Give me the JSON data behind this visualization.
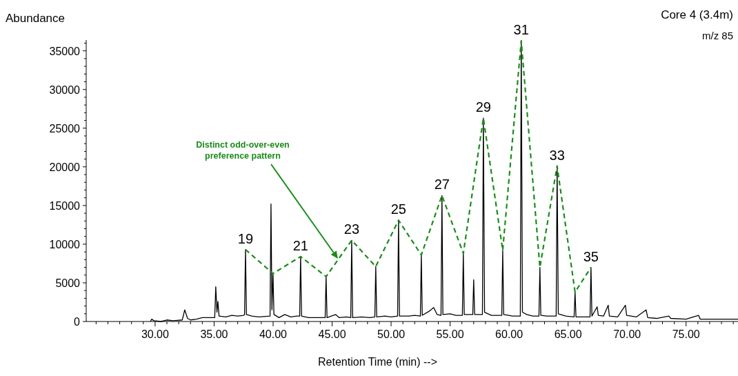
{
  "chart_data": {
    "type": "line",
    "title": "Core 4 (3.4m)",
    "subtitle": "m/z 85",
    "xlabel": "Retention Time (min) -->",
    "ylabel": "Abundance",
    "xlim": [
      24.16,
      79.4
    ],
    "ylim": [
      0,
      36400
    ],
    "xticks": [
      {
        "value": 25,
        "label": null
      },
      {
        "value": 26,
        "label": null
      },
      {
        "value": 27,
        "label": null
      },
      {
        "value": 28,
        "label": null
      },
      {
        "value": 29,
        "label": null
      },
      {
        "value": 30,
        "label": "30.00"
      },
      {
        "value": 31,
        "label": null
      },
      {
        "value": 32,
        "label": null
      },
      {
        "value": 33,
        "label": null
      },
      {
        "value": 34,
        "label": null
      },
      {
        "value": 35,
        "label": "35.00"
      },
      {
        "value": 36,
        "label": null
      },
      {
        "value": 37,
        "label": null
      },
      {
        "value": 38,
        "label": null
      },
      {
        "value": 39,
        "label": null
      },
      {
        "value": 40,
        "label": "40.00"
      },
      {
        "value": 41,
        "label": null
      },
      {
        "value": 42,
        "label": null
      },
      {
        "value": 43,
        "label": null
      },
      {
        "value": 44,
        "label": null
      },
      {
        "value": 45,
        "label": "45.00"
      },
      {
        "value": 46,
        "label": null
      },
      {
        "value": 47,
        "label": null
      },
      {
        "value": 48,
        "label": null
      },
      {
        "value": 49,
        "label": null
      },
      {
        "value": 50,
        "label": "50.00"
      },
      {
        "value": 51,
        "label": null
      },
      {
        "value": 52,
        "label": null
      },
      {
        "value": 53,
        "label": null
      },
      {
        "value": 54,
        "label": null
      },
      {
        "value": 55,
        "label": "55.00"
      },
      {
        "value": 56,
        "label": null
      },
      {
        "value": 57,
        "label": null
      },
      {
        "value": 58,
        "label": null
      },
      {
        "value": 59,
        "label": null
      },
      {
        "value": 60,
        "label": "60.00"
      },
      {
        "value": 61,
        "label": null
      },
      {
        "value": 62,
        "label": null
      },
      {
        "value": 63,
        "label": null
      },
      {
        "value": 64,
        "label": null
      },
      {
        "value": 65,
        "label": "65.00"
      },
      {
        "value": 66,
        "label": null
      },
      {
        "value": 67,
        "label": null
      },
      {
        "value": 68,
        "label": null
      },
      {
        "value": 69,
        "label": null
      },
      {
        "value": 70,
        "label": "70.00"
      },
      {
        "value": 71,
        "label": null
      },
      {
        "value": 72,
        "label": null
      },
      {
        "value": 73,
        "label": null
      },
      {
        "value": 74,
        "label": null
      },
      {
        "value": 75,
        "label": "75.00"
      },
      {
        "value": 76,
        "label": null
      },
      {
        "value": 77,
        "label": null
      },
      {
        "value": 78,
        "label": null
      },
      {
        "value": 79,
        "label": null
      }
    ],
    "yticks": [
      0,
      {
        "value": 1000,
        "label": null
      },
      {
        "value": 2000,
        "label": null
      },
      {
        "value": 3000,
        "label": null
      },
      {
        "value": 4000,
        "label": null
      },
      5000,
      {
        "value": 6000,
        "label": null
      },
      {
        "value": 7000,
        "label": null
      },
      {
        "value": 8000,
        "label": null
      },
      {
        "value": 9000,
        "label": null
      },
      10000,
      {
        "value": 11000,
        "label": null
      },
      {
        "value": 12000,
        "label": null
      },
      {
        "value": 13000,
        "label": null
      },
      {
        "value": 14000,
        "label": null
      },
      15000,
      {
        "value": 16000,
        "label": null
      },
      {
        "value": 17000,
        "label": null
      },
      {
        "value": 18000,
        "label": null
      },
      {
        "value": 19000,
        "label": null
      },
      20000,
      {
        "value": 21000,
        "label": null
      },
      {
        "value": 22000,
        "label": null
      },
      {
        "value": 23000,
        "label": null
      },
      {
        "value": 24000,
        "label": null
      },
      25000,
      {
        "value": 26000,
        "label": null
      },
      {
        "value": 27000,
        "label": null
      },
      {
        "value": 28000,
        "label": null
      },
      {
        "value": 29000,
        "label": null
      },
      30000,
      {
        "value": 31000,
        "label": null
      },
      {
        "value": 32000,
        "label": null
      },
      {
        "value": 33000,
        "label": null
      },
      {
        "value": 34000,
        "label": null
      },
      35000,
      {
        "value": 36000,
        "label": null
      }
    ],
    "marker": "none",
    "series": [
      {
        "color": "#000000",
        "line_style": "solid",
        "x": [
          29.6,
          29.71,
          29.9,
          30.5,
          31.0,
          31.5,
          32.3,
          32.51,
          32.75,
          33.0,
          33.5,
          34.0,
          34.5,
          35.05,
          35.14,
          35.24,
          35.32,
          35.42,
          36.0,
          36.5,
          37.0,
          37.5,
          37.58,
          37.66,
          37.74,
          38.2,
          38.8,
          39.74,
          39.82,
          39.9,
          39.99,
          40.07,
          40.5,
          40.99,
          41.5,
          42.0,
          42.25,
          42.33,
          42.41,
          43.0,
          43.8,
          44.41,
          44.49,
          44.57,
          45.31,
          45.6,
          46.2,
          46.58,
          46.66,
          46.74,
          47.5,
          48.2,
          48.62,
          48.7,
          48.78,
          49.5,
          50.0,
          50.55,
          50.63,
          50.71,
          51.5,
          52.0,
          52.48,
          52.56,
          52.64,
          53.2,
          53.61,
          53.9,
          54.23,
          54.31,
          54.39,
          55.01,
          55.5,
          56.04,
          56.12,
          56.2,
          56.6,
          56.92,
          57.0,
          57.08,
          57.74,
          57.82,
          57.92,
          58.5,
          59.38,
          59.46,
          59.54,
          60.3,
          60.95,
          61.03,
          61.13,
          61.5,
          62.0,
          62.53,
          62.61,
          62.69,
          63.2,
          63.99,
          64.07,
          64.17,
          64.8,
          65.51,
          65.59,
          65.67,
          66.4,
          66.86,
          66.94,
          67.02,
          67.46,
          67.56,
          68.0,
          68.4,
          68.5,
          69.2,
          69.86,
          69.96,
          70.8,
          71.61,
          71.75,
          72.5,
          73.54,
          73.7,
          75.0,
          76.05,
          76.2,
          78.0,
          79.4
        ],
        "values": [
          0,
          300,
          100,
          0,
          200,
          100,
          200,
          1500,
          400,
          200,
          300,
          500,
          500,
          500,
          4500,
          1200,
          2600,
          700,
          600,
          800,
          700,
          800,
          900,
          9300,
          900,
          700,
          600,
          700,
          15200,
          1500,
          6200,
          900,
          500,
          900,
          600,
          700,
          700,
          8400,
          700,
          500,
          500,
          500,
          5800,
          500,
          900,
          500,
          600,
          500,
          10500,
          500,
          600,
          500,
          600,
          7100,
          600,
          700,
          600,
          700,
          13100,
          700,
          700,
          800,
          700,
          8600,
          800,
          1300,
          1800,
          900,
          800,
          16300,
          900,
          1000,
          800,
          800,
          8800,
          900,
          900,
          900,
          5400,
          900,
          900,
          26300,
          1200,
          800,
          800,
          9200,
          900,
          700,
          700,
          36300,
          1200,
          900,
          700,
          700,
          7000,
          800,
          700,
          700,
          20100,
          1000,
          700,
          600,
          3800,
          600,
          600,
          600,
          7000,
          700,
          1900,
          800,
          700,
          2100,
          700,
          600,
          2100,
          800,
          600,
          1500,
          500,
          400,
          700,
          400,
          300,
          800,
          300,
          300,
          300
        ]
      },
      {
        "color": "#1a8c1a",
        "line_style": "dashed",
        "x": [
          37.66,
          39.99,
          42.33,
          44.49,
          46.66,
          48.7,
          50.63,
          52.56,
          54.31,
          56.12,
          57.82,
          59.46,
          61.03,
          62.61,
          64.07,
          65.59,
          66.94
        ],
        "values": [
          9300,
          6200,
          8400,
          5800,
          10500,
          7100,
          13100,
          8600,
          16300,
          8800,
          26300,
          9200,
          36300,
          7000,
          20100,
          3800,
          7000
        ]
      }
    ],
    "annotations": [
      {
        "text": "19",
        "x": 37.66,
        "y": 9300
      },
      {
        "text": "21",
        "x": 42.33,
        "y": 8400
      },
      {
        "text": "23",
        "x": 46.66,
        "y": 10500
      },
      {
        "text": "25",
        "x": 50.63,
        "y": 13100
      },
      {
        "text": "27",
        "x": 54.31,
        "y": 16300
      },
      {
        "text": "29",
        "x": 57.82,
        "y": 26300
      },
      {
        "text": "31",
        "x": 61.03,
        "y": 36300
      },
      {
        "text": "33",
        "x": 64.07,
        "y": 20100
      },
      {
        "text": "35",
        "x": 66.94,
        "y": 7000
      },
      "Distinct odd-over-even preference pattern"
    ]
  }
}
